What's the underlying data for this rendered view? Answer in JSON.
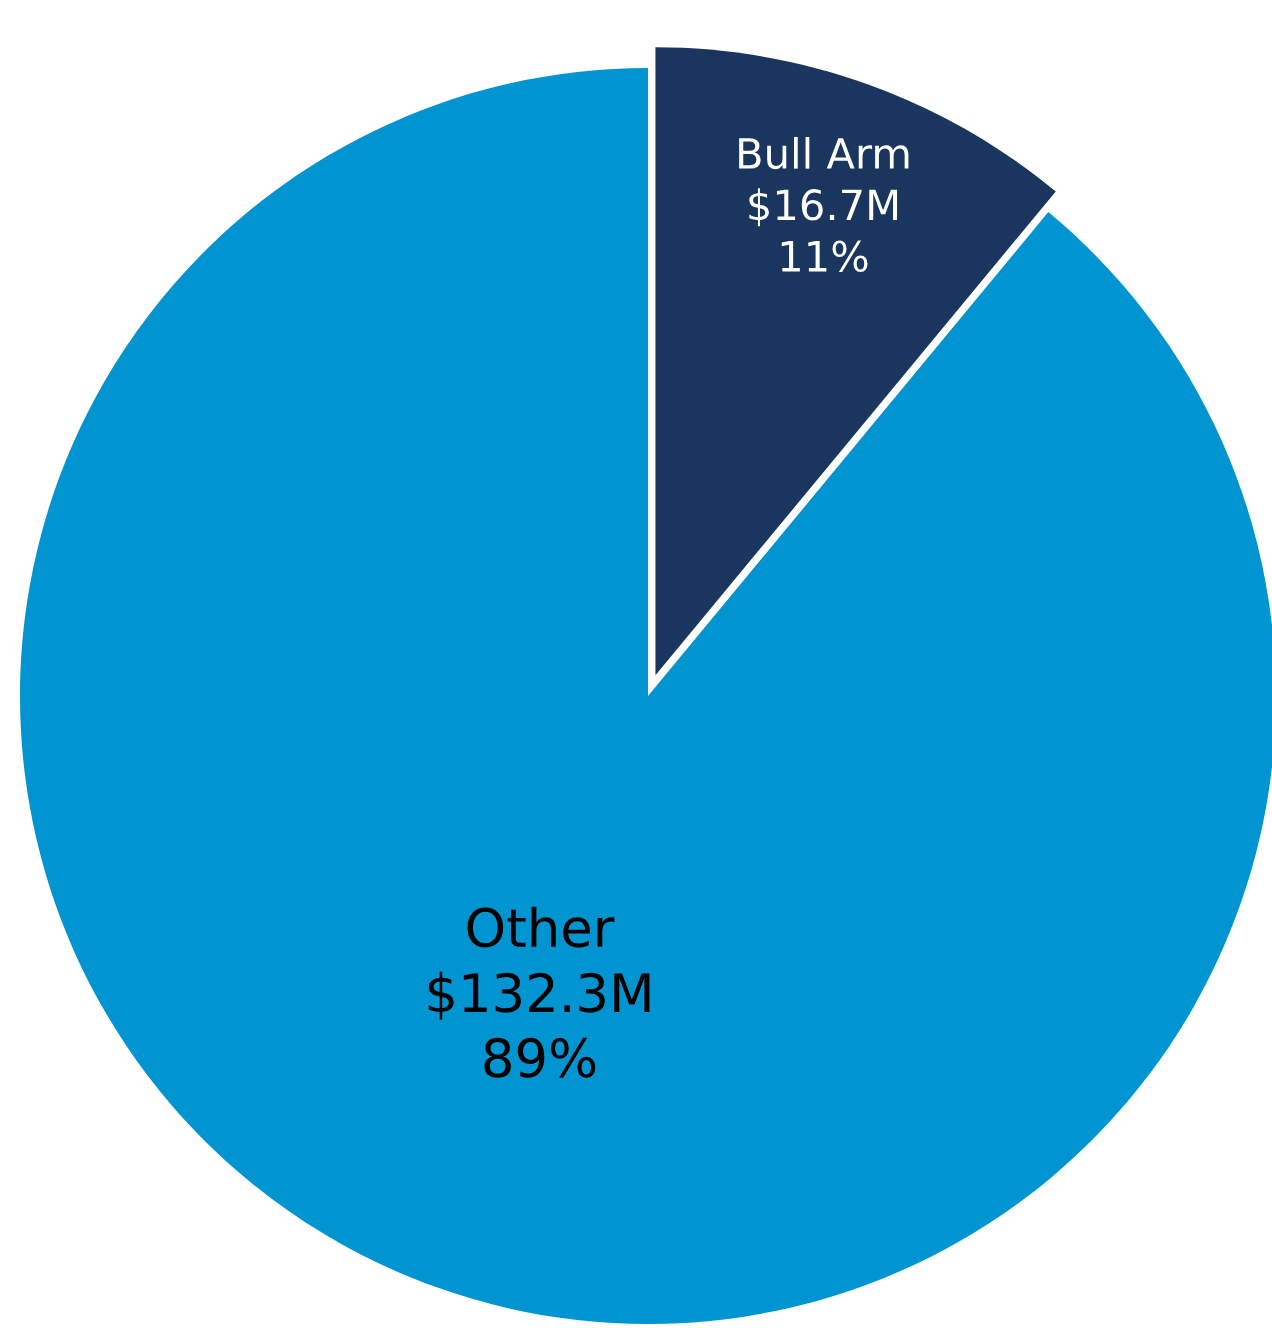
{
  "chart_data": {
    "type": "pie",
    "categories": [
      "Bull Arm",
      "Other"
    ],
    "values": [
      11,
      89
    ],
    "value_labels": [
      "$16.7M\n11%",
      "$132.3M\n89%"
    ],
    "colors": [
      "#1a355e",
      "#0095d0"
    ]
  }
}
